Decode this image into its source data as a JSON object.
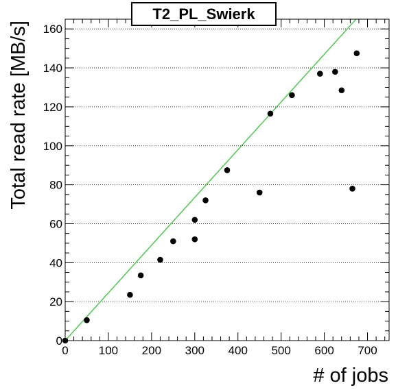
{
  "chart_data": {
    "type": "scatter",
    "title": "T2_PL_Swierk",
    "xlabel": "# of jobs",
    "ylabel": "Total read rate [MB/s]",
    "xlim": [
      0,
      750
    ],
    "ylim": [
      0,
      165
    ],
    "x_ticks": [
      0,
      100,
      200,
      300,
      400,
      500,
      600,
      700
    ],
    "y_ticks": [
      0,
      20,
      40,
      60,
      80,
      100,
      120,
      140,
      160
    ],
    "grid": "horizontal dotted",
    "points": [
      {
        "x": 0,
        "y": 0
      },
      {
        "x": 50,
        "y": 10.5
      },
      {
        "x": 150,
        "y": 23.5
      },
      {
        "x": 175,
        "y": 33.5
      },
      {
        "x": 220,
        "y": 41.5
      },
      {
        "x": 250,
        "y": 51
      },
      {
        "x": 300,
        "y": 52
      },
      {
        "x": 300,
        "y": 62
      },
      {
        "x": 325,
        "y": 72
      },
      {
        "x": 375,
        "y": 87.5
      },
      {
        "x": 450,
        "y": 76
      },
      {
        "x": 475,
        "y": 116.5
      },
      {
        "x": 525,
        "y": 126
      },
      {
        "x": 590,
        "y": 137
      },
      {
        "x": 625,
        "y": 138
      },
      {
        "x": 640,
        "y": 128.5
      },
      {
        "x": 665,
        "y": 78
      },
      {
        "x": 675,
        "y": 147.5
      }
    ],
    "fit_line": {
      "slope": 0.245,
      "intercept": 0,
      "color": "#5ac85a"
    },
    "marker_color": "#000000"
  }
}
